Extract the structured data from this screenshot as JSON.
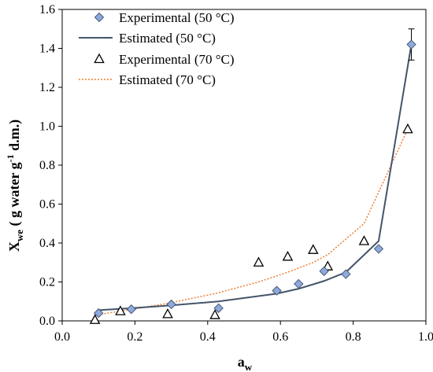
{
  "chart_data": {
    "type": "scatter",
    "xlabel": "a",
    "xlabel_sub": "w",
    "ylabel": "X",
    "ylabel_sub": "we",
    "ylabel_rest": " ( g water g",
    "ylabel_sup": "-1",
    "ylabel_end": " d.m.)",
    "xlim": [
      0.0,
      1.0
    ],
    "ylim": [
      0.0,
      1.6
    ],
    "xticks": [
      "0.0",
      "0.2",
      "0.4",
      "0.6",
      "0.8",
      "1.0"
    ],
    "yticks": [
      "0.0",
      "0.2",
      "0.4",
      "0.6",
      "0.8",
      "1.0",
      "1.2",
      "1.4",
      "1.6"
    ],
    "legend_position": "top-left",
    "grid": false,
    "colors": {
      "marker_50": "#8EA9DB",
      "line_50": "#44546A",
      "marker_70": "#ffffff",
      "line_70": "#ED7D31"
    },
    "series": [
      {
        "name": "Experimental (50 °C)",
        "style": "diamond",
        "x": [
          0.1,
          0.19,
          0.3,
          0.43,
          0.59,
          0.65,
          0.72,
          0.78,
          0.87,
          0.96
        ],
        "y": [
          0.04,
          0.06,
          0.085,
          0.065,
          0.155,
          0.19,
          0.255,
          0.24,
          0.37,
          1.42
        ],
        "error_point": {
          "x": 0.96,
          "y": 1.42,
          "err": 0.08
        }
      },
      {
        "name": "Estimated (50 °C)",
        "style": "solid-line",
        "x": [
          0.1,
          0.19,
          0.3,
          0.43,
          0.59,
          0.65,
          0.72,
          0.78,
          0.87,
          0.96
        ],
        "y": [
          0.055,
          0.065,
          0.08,
          0.1,
          0.14,
          0.165,
          0.205,
          0.25,
          0.41,
          1.42
        ]
      },
      {
        "name": "Experimental (70 °C)",
        "style": "triangle",
        "x": [
          0.09,
          0.16,
          0.29,
          0.42,
          0.54,
          0.62,
          0.69,
          0.73,
          0.83,
          0.95
        ],
        "y": [
          0.005,
          0.05,
          0.035,
          0.03,
          0.3,
          0.33,
          0.365,
          0.28,
          0.41,
          0.985
        ]
      },
      {
        "name": "Estimated (70 °C)",
        "style": "dotted-line",
        "x": [
          0.09,
          0.16,
          0.29,
          0.42,
          0.54,
          0.62,
          0.69,
          0.73,
          0.83,
          0.95
        ],
        "y": [
          0.03,
          0.05,
          0.09,
          0.14,
          0.2,
          0.25,
          0.3,
          0.34,
          0.5,
          0.985
        ]
      }
    ]
  }
}
